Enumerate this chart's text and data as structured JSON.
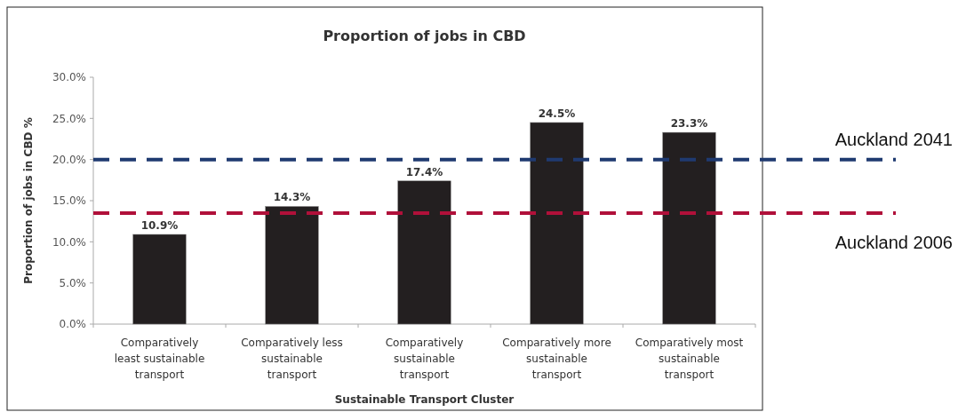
{
  "chart_data": {
    "type": "bar",
    "title": "Proportion of jobs in CBD",
    "xlabel": "Sustainable Transport Cluster",
    "ylabel": "Proportion of jobs in CBD %",
    "categories": [
      "Comparatively least sustainable transport",
      "Comparatively less sustainable transport",
      "Comparatively sustainable transport",
      "Comparatively more sustainable transport",
      "Comparatively most sustainable transport"
    ],
    "values": [
      10.9,
      14.3,
      17.4,
      24.5,
      23.3
    ],
    "color": "#231f20",
    "value_labels": [
      "10.9%",
      "14.3%",
      "17.4%",
      "24.5%",
      "23.3%"
    ],
    "ylim": [
      0,
      30
    ],
    "yticks": [
      {
        "value": 0,
        "label": "0.0%"
      },
      {
        "value": 5,
        "label": "5.0%"
      },
      {
        "value": 10,
        "label": "10.0%"
      },
      {
        "value": 15,
        "label": "15.0%"
      },
      {
        "value": 20,
        "label": "20.0%"
      },
      {
        "value": 25,
        "label": "25.0%"
      },
      {
        "value": 30,
        "label": "30.0%"
      }
    ],
    "ref_lines": [
      {
        "axis": "y",
        "value": 20,
        "label": "Auckland 2041",
        "color": "#1f3a70",
        "line_style": "dashed"
      },
      {
        "axis": "y",
        "value": 13.5,
        "label": "Auckland 2006",
        "color": "#b0103a",
        "line_style": "dashed"
      }
    ]
  }
}
